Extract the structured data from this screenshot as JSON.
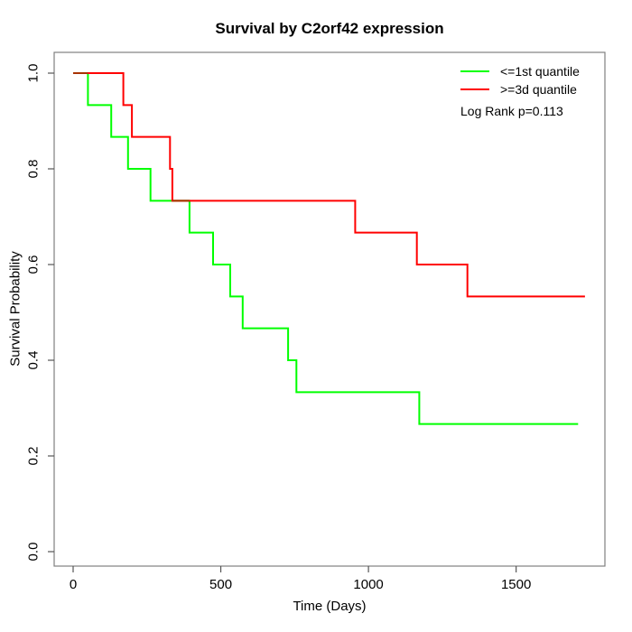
{
  "chart_data": {
    "type": "line",
    "subtype": "kaplan-meier-step",
    "step": "hv",
    "title": "Survival by C2orf42 expression",
    "xlabel": "Time (Days)",
    "ylabel": "Survival Probability",
    "xticks": [
      0,
      500,
      1000,
      1500
    ],
    "yticks": [
      0.0,
      0.2,
      0.4,
      0.6,
      0.8,
      1.0
    ],
    "xlim": [
      -64,
      1801
    ],
    "ylim": [
      -0.03,
      1.045
    ],
    "grid": false,
    "legend_position": "top-right-inside",
    "annotation": "Log Rank p=0.113",
    "series": [
      {
        "name": "<=1st quantile",
        "color": "#00ff00",
        "times": [
          0,
          50,
          129,
          186,
          262,
          394,
          474,
          532,
          574,
          728,
          756,
          1172
        ],
        "survival": [
          1.0,
          0.9333,
          0.8667,
          0.8,
          0.7333,
          0.6667,
          0.6,
          0.5333,
          0.4667,
          0.4,
          0.3333,
          0.2667
        ],
        "end_time": 1710
      },
      {
        "name": ">=3d quantile",
        "color": "#ff0000",
        "times": [
          0,
          170,
          199,
          328,
          336,
          955,
          1164,
          1335
        ],
        "survival": [
          1.0,
          0.9333,
          0.8667,
          0.8,
          0.7333,
          0.6667,
          0.6,
          0.5333
        ],
        "end_time": 1733
      }
    ],
    "overlaps": [
      {
        "from": 0,
        "to": 50,
        "level": 1.0
      },
      {
        "from": 336,
        "to": 394,
        "level": 0.7333
      }
    ],
    "colors": {
      "overlap": "#a83300",
      "box": "#808080",
      "tick": "#555555"
    }
  }
}
